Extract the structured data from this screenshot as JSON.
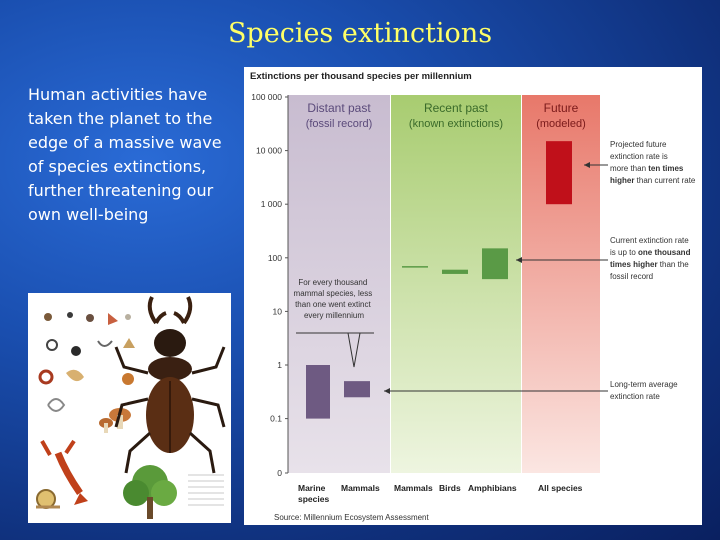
{
  "slide": {
    "title": "Species extinctions",
    "body": "Human activities have taken the planet to the edge of a massive wave of species extinctions, further threatening our own well-being"
  },
  "chart_data": {
    "type": "bar",
    "title": "Extinctions per thousand species per millennium",
    "source": "Source: Millennium Ecosystem Assessment",
    "yscale": "log",
    "ylim": [
      0,
      100000
    ],
    "yticks": [
      "100 000",
      "10 000",
      "1 000",
      "100",
      "10",
      "1",
      "0.1",
      "0"
    ],
    "periods": [
      {
        "label": "Distant past",
        "sublabel": "(fossil record)",
        "color": "#6e5a82"
      },
      {
        "label": "Recent past",
        "sublabel": "(known extinctions)",
        "color": "#5a9a46"
      },
      {
        "label": "Future",
        "sublabel": "(modeled)",
        "color": "#c0101a"
      }
    ],
    "series": [
      {
        "category": "Marine species",
        "period": "Distant past",
        "low": 0.1,
        "high": 1
      },
      {
        "category": "Mammals",
        "period": "Distant past",
        "low": 0.25,
        "high": 0.5
      },
      {
        "category": "Mammals",
        "period": "Recent past",
        "low": 70,
        "high": 70
      },
      {
        "category": "Birds",
        "period": "Recent past",
        "low": 50,
        "high": 60
      },
      {
        "category": "Amphibians",
        "period": "Recent past",
        "low": 40,
        "high": 150
      },
      {
        "category": "All species",
        "period": "Future",
        "low": 1000,
        "high": 15000
      }
    ],
    "categories": [
      "Marine species",
      "Mammals",
      "Mammals",
      "Birds",
      "Amphibians",
      "All species"
    ],
    "annotations": {
      "distant": "For every thousand mammal species, less than one went extinct every millennium",
      "projected": "Projected future extinction rate is more than ten times higher than current rate",
      "current": "Current extinction rate is up to one thousand times higher than the fossil record",
      "average": "Long-term average extinction rate"
    }
  }
}
